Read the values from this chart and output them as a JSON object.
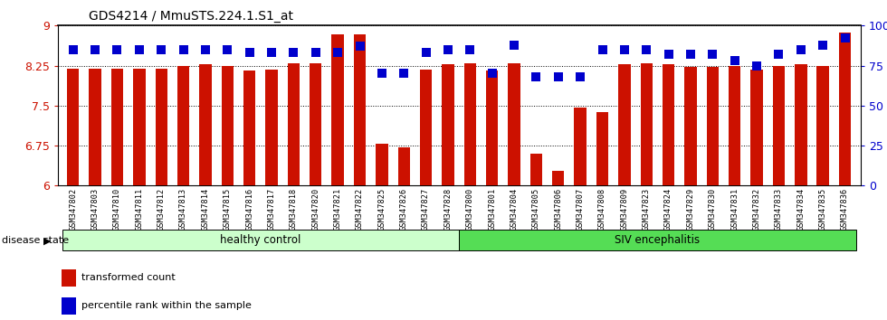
{
  "title": "GDS4214 / MmuSTS.224.1.S1_at",
  "samples": [
    "GSM347802",
    "GSM347803",
    "GSM347810",
    "GSM347811",
    "GSM347812",
    "GSM347813",
    "GSM347814",
    "GSM347815",
    "GSM347816",
    "GSM347817",
    "GSM347818",
    "GSM347820",
    "GSM347821",
    "GSM347822",
    "GSM347825",
    "GSM347826",
    "GSM347827",
    "GSM347828",
    "GSM347800",
    "GSM347801",
    "GSM347804",
    "GSM347805",
    "GSM347806",
    "GSM347807",
    "GSM347808",
    "GSM347809",
    "GSM347823",
    "GSM347824",
    "GSM347829",
    "GSM347830",
    "GSM347831",
    "GSM347832",
    "GSM347833",
    "GSM347834",
    "GSM347835",
    "GSM347836"
  ],
  "transformed_count": [
    8.2,
    8.2,
    8.2,
    8.2,
    8.2,
    8.25,
    8.28,
    8.25,
    8.16,
    8.18,
    8.3,
    8.3,
    8.83,
    8.83,
    6.78,
    6.72,
    8.18,
    8.28,
    8.3,
    8.16,
    8.3,
    6.6,
    6.28,
    7.46,
    7.38,
    8.28,
    8.3,
    8.28,
    8.22,
    8.22,
    8.25,
    8.18,
    8.25,
    8.28,
    8.25,
    8.87
  ],
  "percentile_rank": [
    85,
    85,
    85,
    85,
    85,
    85,
    85,
    85,
    83,
    83,
    83,
    83,
    83,
    87,
    70,
    70,
    83,
    85,
    85,
    70,
    88,
    68,
    68,
    68,
    85,
    85,
    85,
    82,
    82,
    82,
    78,
    75,
    82,
    85,
    88,
    92
  ],
  "healthy_count": 18,
  "bar_color": "#cc1100",
  "percentile_color": "#0000cc",
  "ylim_left": [
    6.0,
    9.0
  ],
  "ylim_right": [
    0,
    100
  ],
  "yticks_left": [
    6.0,
    6.75,
    7.5,
    8.25,
    9.0
  ],
  "ytick_labels_left": [
    "6",
    "6.75",
    "7.5",
    "8.25",
    "9"
  ],
  "yticks_right": [
    0,
    25,
    50,
    75,
    100
  ],
  "ytick_labels_right": [
    "0",
    "25",
    "50",
    "75",
    "100%"
  ],
  "healthy_label": "healthy control",
  "siv_label": "SIV encephalitis",
  "disease_state_label": "disease state",
  "legend_bar_label": "transformed count",
  "legend_dot_label": "percentile rank within the sample",
  "healthy_color": "#ccffcc",
  "siv_color": "#55dd55",
  "bar_width": 0.55,
  "dot_size": 45,
  "background_color": "#ffffff",
  "xtick_bg_color": "#d8d8d8",
  "left_ytick_color": "#cc1100",
  "right_ytick_color": "#0000cc"
}
